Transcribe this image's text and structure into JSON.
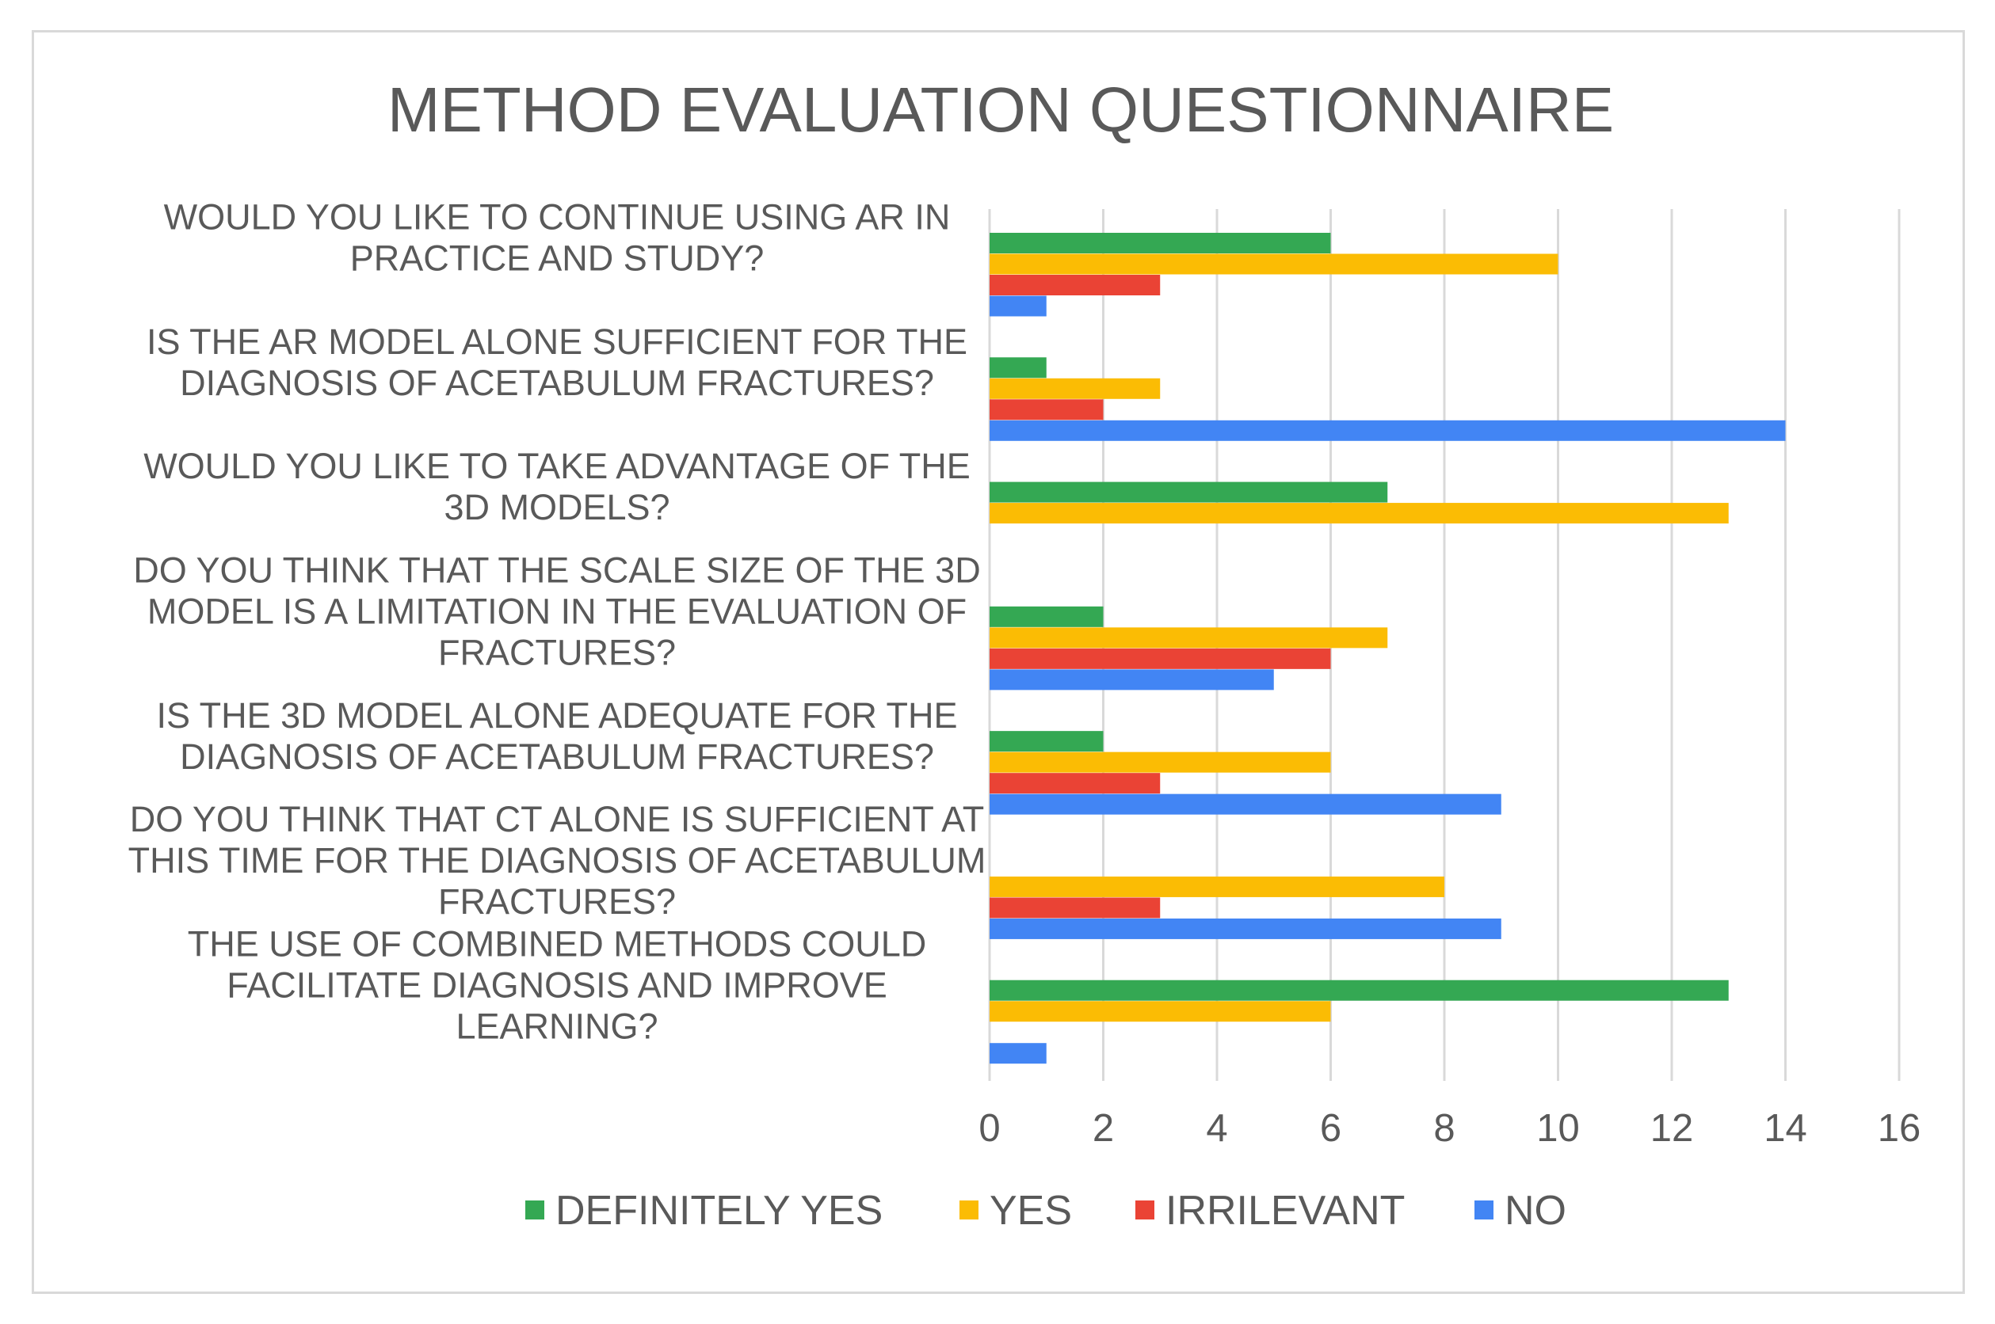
{
  "chart_data": {
    "type": "bar",
    "orientation": "horizontal",
    "title": "METHOD EVALUATION QUESTIONNAIRE",
    "categories": [
      [
        "WOULD YOU LIKE TO CONTINUE USING AR IN",
        "PRACTICE AND STUDY?"
      ],
      [
        "IS THE AR MODEL ALONE SUFFICIENT FOR THE",
        "DIAGNOSIS OF ACETABULUM FRACTURES?"
      ],
      [
        "WOULD YOU LIKE TO TAKE ADVANTAGE OF THE",
        "3D MODELS?"
      ],
      [
        "DO YOU THINK THAT THE SCALE SIZE OF THE 3D",
        "MODEL IS A LIMITATION IN THE EVALUATION OF",
        "FRACTURES?"
      ],
      [
        "IS THE 3D MODEL ALONE ADEQUATE FOR THE",
        "DIAGNOSIS OF ACETABULUM FRACTURES?"
      ],
      [
        "DO YOU THINK THAT CT ALONE IS SUFFICIENT AT",
        "THIS TIME FOR THE DIAGNOSIS OF ACETABULUM",
        "FRACTURES?"
      ],
      [
        "THE USE OF COMBINED METHODS COULD",
        "FACILITATE DIAGNOSIS AND IMPROVE",
        "LEARNING?"
      ]
    ],
    "series": [
      {
        "name": "DEFINITELY YES",
        "color": "#34a853",
        "values": [
          6,
          1,
          7,
          2,
          2,
          0,
          13
        ]
      },
      {
        "name": "YES",
        "color": "#fbbc04",
        "values": [
          10,
          3,
          13,
          7,
          6,
          8,
          6
        ]
      },
      {
        "name": "IRRILEVANT",
        "color": "#ea4335",
        "values": [
          3,
          2,
          0,
          6,
          3,
          3,
          0
        ]
      },
      {
        "name": "NO",
        "color": "#4285f4",
        "values": [
          1,
          14,
          0,
          5,
          9,
          9,
          1
        ]
      }
    ],
    "xlim": [
      0,
      16
    ],
    "xticks": [
      0,
      2,
      4,
      6,
      8,
      10,
      12,
      14,
      16
    ],
    "grid": "vertical",
    "legend": "bottom"
  }
}
